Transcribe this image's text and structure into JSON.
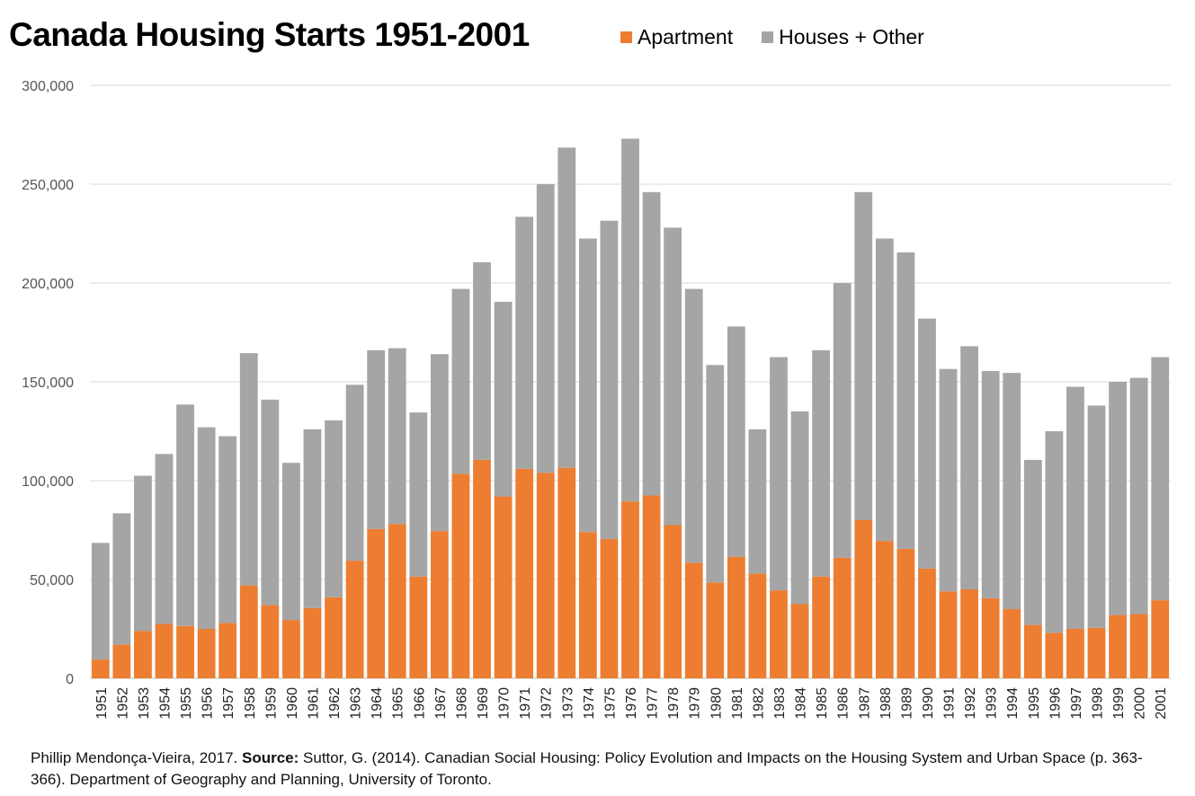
{
  "chart_data": {
    "type": "bar",
    "stacked": true,
    "title": "Canada Housing Starts 1951-2001",
    "categories": [
      "1951",
      "1952",
      "1953",
      "1954",
      "1955",
      "1956",
      "1957",
      "1958",
      "1959",
      "1960",
      "1961",
      "1962",
      "1963",
      "1964",
      "1965",
      "1966",
      "1967",
      "1968",
      "1969",
      "1970",
      "1971",
      "1972",
      "1973",
      "1974",
      "1975",
      "1976",
      "1977",
      "1978",
      "1979",
      "1980",
      "1981",
      "1982",
      "1983",
      "1984",
      "1985",
      "1986",
      "1987",
      "1988",
      "1989",
      "1990",
      "1991",
      "1992",
      "1993",
      "1994",
      "1995",
      "1996",
      "1997",
      "1998",
      "1999",
      "2000",
      "2001"
    ],
    "series": [
      {
        "name": "Apartment",
        "color": "#ED7D31",
        "values": [
          9500,
          17000,
          24000,
          27500,
          26500,
          25000,
          28000,
          47000,
          37000,
          29500,
          35500,
          41000,
          59500,
          75500,
          78000,
          51500,
          74500,
          103500,
          110500,
          92000,
          106000,
          104000,
          106500,
          74000,
          70500,
          89500,
          92500,
          77500,
          58500,
          48500,
          61500,
          53000,
          44500,
          37500,
          51500,
          61000,
          80000,
          69500,
          65500,
          55500,
          44000,
          45000,
          40500,
          35000,
          27000,
          23000,
          25000,
          25500,
          32000,
          32500,
          39500
        ]
      },
      {
        "name": "Houses + Other",
        "color": "#A5A5A5",
        "values": [
          59000,
          66500,
          78500,
          86000,
          112000,
          102000,
          94500,
          117500,
          104000,
          79500,
          90500,
          89500,
          89000,
          90500,
          89000,
          83000,
          89500,
          93500,
          100000,
          98500,
          127500,
          146000,
          162000,
          148500,
          161000,
          183500,
          153500,
          150500,
          138500,
          110000,
          116500,
          73000,
          118000,
          97500,
          114500,
          139000,
          166000,
          153000,
          150000,
          126500,
          112500,
          123000,
          115000,
          119500,
          83500,
          102000,
          122500,
          112500,
          118000,
          119500,
          123000
        ]
      }
    ],
    "ylim": [
      0,
      300000
    ],
    "yticks": [
      "0",
      "50,000",
      "100,000",
      "150,000",
      "200,000",
      "250,000",
      "300,000"
    ],
    "ytick_values": [
      0,
      50000,
      100000,
      150000,
      200000,
      250000,
      300000
    ],
    "xlabel": "",
    "ylabel": "",
    "grid": true,
    "legend": "top"
  },
  "footer": {
    "author": "Phillip Mendonça-Vieira, 2017. ",
    "source_label": "Source:",
    "source_text": " Suttor, G. (2014). Canadian Social Housing: Policy Evolution and Impacts on the Housing System and Urban Space (p. 363-366). Department of Geography and Planning, University of Toronto."
  }
}
